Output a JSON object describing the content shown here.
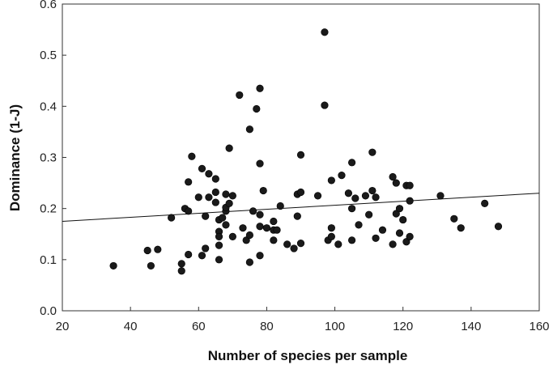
{
  "chart_data": {
    "type": "scatter",
    "xlabel": "Number of species per sample",
    "ylabel": "Dominance (1-J)",
    "xlim": [
      20,
      160
    ],
    "ylim": [
      0.0,
      0.6
    ],
    "x_ticks": [
      "20",
      "40",
      "60",
      "80",
      "100",
      "120",
      "140",
      "160"
    ],
    "y_ticks": [
      "0.0",
      "0.1",
      "0.2",
      "0.3",
      "0.4",
      "0.5",
      "0.6"
    ],
    "grid": false,
    "colors": {
      "point": "#1a1a1a",
      "line": "#111111",
      "axis": "#333333"
    },
    "trendline": {
      "x": [
        20,
        160
      ],
      "y": [
        0.175,
        0.23
      ]
    },
    "points": [
      [
        35,
        0.088
      ],
      [
        45,
        0.118
      ],
      [
        46,
        0.088
      ],
      [
        48,
        0.12
      ],
      [
        52,
        0.182
      ],
      [
        55,
        0.092
      ],
      [
        55,
        0.078
      ],
      [
        56,
        0.2
      ],
      [
        57,
        0.195
      ],
      [
        57,
        0.11
      ],
      [
        57,
        0.252
      ],
      [
        58,
        0.302
      ],
      [
        60,
        0.222
      ],
      [
        61,
        0.278
      ],
      [
        61,
        0.108
      ],
      [
        62,
        0.122
      ],
      [
        62,
        0.185
      ],
      [
        63,
        0.222
      ],
      [
        63,
        0.268
      ],
      [
        65,
        0.232
      ],
      [
        65,
        0.212
      ],
      [
        65,
        0.258
      ],
      [
        66,
        0.178
      ],
      [
        66,
        0.155
      ],
      [
        66,
        0.145
      ],
      [
        66,
        0.128
      ],
      [
        66,
        0.1
      ],
      [
        67,
        0.182
      ],
      [
        68,
        0.228
      ],
      [
        68,
        0.195
      ],
      [
        68,
        0.168
      ],
      [
        68,
        0.202
      ],
      [
        69,
        0.21
      ],
      [
        69,
        0.318
      ],
      [
        70,
        0.225
      ],
      [
        70,
        0.145
      ],
      [
        72,
        0.422
      ],
      [
        73,
        0.162
      ],
      [
        74,
        0.138
      ],
      [
        75,
        0.355
      ],
      [
        75,
        0.148
      ],
      [
        75,
        0.095
      ],
      [
        76,
        0.195
      ],
      [
        77,
        0.395
      ],
      [
        78,
        0.435
      ],
      [
        78,
        0.288
      ],
      [
        78,
        0.188
      ],
      [
        78,
        0.165
      ],
      [
        78,
        0.108
      ],
      [
        79,
        0.235
      ],
      [
        80,
        0.162
      ],
      [
        82,
        0.175
      ],
      [
        82,
        0.158
      ],
      [
        82,
        0.138
      ],
      [
        83,
        0.158
      ],
      [
        84,
        0.205
      ],
      [
        86,
        0.13
      ],
      [
        88,
        0.122
      ],
      [
        89,
        0.228
      ],
      [
        89,
        0.185
      ],
      [
        90,
        0.305
      ],
      [
        90,
        0.232
      ],
      [
        90,
        0.132
      ],
      [
        95,
        0.225
      ],
      [
        97,
        0.545
      ],
      [
        97,
        0.402
      ],
      [
        98,
        0.138
      ],
      [
        99,
        0.255
      ],
      [
        99,
        0.162
      ],
      [
        99,
        0.145
      ],
      [
        101,
        0.13
      ],
      [
        102,
        0.265
      ],
      [
        104,
        0.23
      ],
      [
        105,
        0.29
      ],
      [
        105,
        0.2
      ],
      [
        105,
        0.138
      ],
      [
        106,
        0.22
      ],
      [
        107,
        0.168
      ],
      [
        109,
        0.225
      ],
      [
        110,
        0.188
      ],
      [
        111,
        0.235
      ],
      [
        111,
        0.31
      ],
      [
        112,
        0.222
      ],
      [
        112,
        0.142
      ],
      [
        114,
        0.158
      ],
      [
        117,
        0.262
      ],
      [
        117,
        0.13
      ],
      [
        118,
        0.25
      ],
      [
        118,
        0.19
      ],
      [
        119,
        0.2
      ],
      [
        119,
        0.152
      ],
      [
        120,
        0.178
      ],
      [
        121,
        0.245
      ],
      [
        121,
        0.135
      ],
      [
        122,
        0.245
      ],
      [
        122,
        0.145
      ],
      [
        122,
        0.215
      ],
      [
        131,
        0.225
      ],
      [
        135,
        0.18
      ],
      [
        137,
        0.162
      ],
      [
        144,
        0.21
      ],
      [
        148,
        0.165
      ]
    ]
  }
}
